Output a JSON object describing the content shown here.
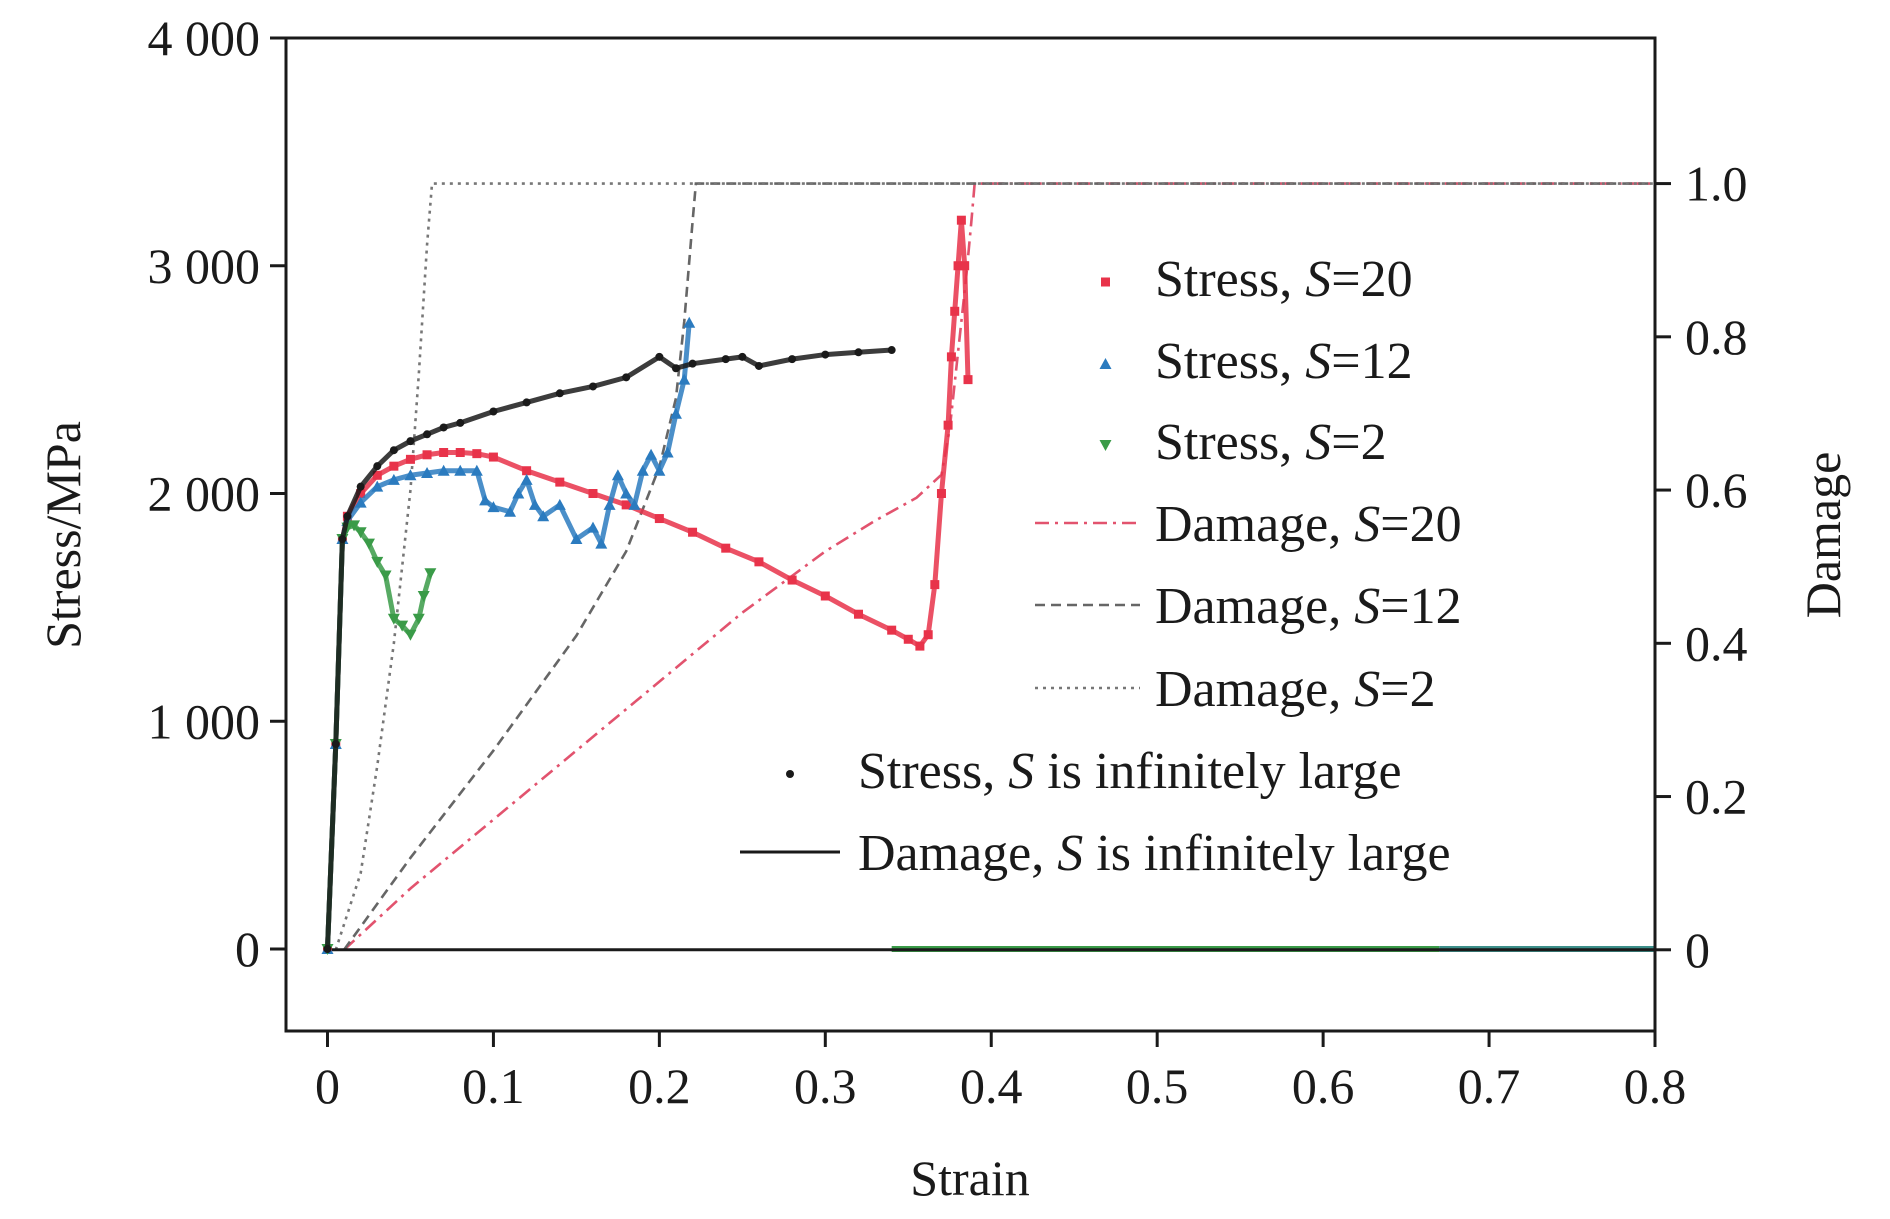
{
  "chart_data": {
    "type": "scatter",
    "xlabel": "Strain",
    "ylabel": "Stress/MPa",
    "y2label": "Damage",
    "xlim": [
      -0.025,
      0.8
    ],
    "ylim": [
      -360,
      4000
    ],
    "y2lim": [
      -0.106,
      1.19
    ],
    "x_ticks": [
      0,
      0.1,
      0.2,
      0.3,
      0.4,
      0.5,
      0.6,
      0.7,
      0.8
    ],
    "x_tick_labels": [
      "0",
      "0.1",
      "0.2",
      "0.3",
      "0.4",
      "0.5",
      "0.6",
      "0.7",
      "0.8"
    ],
    "y_ticks": [
      0,
      1000,
      2000,
      3000,
      4000
    ],
    "y_tick_labels": [
      "0",
      "1 000",
      "2 000",
      "3 000",
      "4 000"
    ],
    "y2_ticks": [
      0,
      0.2,
      0.4,
      0.6,
      0.8,
      1.0
    ],
    "y2_tick_labels": [
      "0",
      "0.2",
      "0.4",
      "0.6",
      "0.8",
      "1.0"
    ],
    "legend_position": "right",
    "series": [
      {
        "name_parts": [
          "Stress, ",
          "S",
          "=20"
        ],
        "axis": "left",
        "style": "dots",
        "marker": "square",
        "color": "#e8334a",
        "x": [
          0,
          0.005,
          0.009,
          0.012,
          0.02,
          0.03,
          0.04,
          0.05,
          0.06,
          0.07,
          0.08,
          0.09,
          0.1,
          0.12,
          0.14,
          0.16,
          0.18,
          0.2,
          0.22,
          0.24,
          0.26,
          0.28,
          0.3,
          0.32,
          0.34,
          0.35,
          0.357,
          0.362,
          0.366,
          0.37,
          0.374,
          0.376,
          0.378,
          0.38,
          0.382,
          0.384,
          0.386
        ],
        "y": [
          0,
          900,
          1800,
          1900,
          2000,
          2080,
          2120,
          2150,
          2170,
          2180,
          2180,
          2175,
          2160,
          2100,
          2050,
          2000,
          1950,
          1890,
          1830,
          1760,
          1700,
          1620,
          1550,
          1470,
          1400,
          1360,
          1330,
          1380,
          1600,
          2000,
          2300,
          2600,
          2800,
          3000,
          3200,
          3000,
          2500
        ]
      },
      {
        "name_parts": [
          "Stress, ",
          "S",
          "=12"
        ],
        "axis": "left",
        "style": "dots",
        "marker": "triangle",
        "color": "#2b7bbf",
        "x": [
          0,
          0.005,
          0.009,
          0.012,
          0.02,
          0.03,
          0.04,
          0.05,
          0.06,
          0.07,
          0.08,
          0.09,
          0.095,
          0.1,
          0.11,
          0.115,
          0.12,
          0.125,
          0.13,
          0.14,
          0.15,
          0.16,
          0.165,
          0.17,
          0.175,
          0.18,
          0.185,
          0.19,
          0.195,
          0.2,
          0.205,
          0.21,
          0.215,
          0.218
        ],
        "y": [
          0,
          900,
          1800,
          1880,
          1960,
          2030,
          2060,
          2080,
          2090,
          2100,
          2100,
          2100,
          1970,
          1940,
          1920,
          2000,
          2060,
          1950,
          1900,
          1950,
          1800,
          1850,
          1780,
          1950,
          2080,
          2000,
          1950,
          2100,
          2170,
          2100,
          2180,
          2350,
          2500,
          2750
        ]
      },
      {
        "name_parts": [
          "Stress, ",
          "S",
          "=2"
        ],
        "axis": "left",
        "style": "dots",
        "marker": "down-triangle",
        "color": "#3a9b48",
        "x": [
          0,
          0.005,
          0.009,
          0.012,
          0.016,
          0.02,
          0.025,
          0.03,
          0.035,
          0.04,
          0.045,
          0.05,
          0.055,
          0.058,
          0.062
        ],
        "y": [
          0,
          900,
          1800,
          1850,
          1860,
          1830,
          1780,
          1700,
          1640,
          1450,
          1420,
          1380,
          1450,
          1550,
          1650
        ]
      },
      {
        "name_parts": [
          "Damage, ",
          "S",
          "=20"
        ],
        "axis": "right",
        "style": "dash-dot",
        "color": "#e2536e",
        "x": [
          0.01,
          0.05,
          0.1,
          0.15,
          0.2,
          0.25,
          0.3,
          0.33,
          0.355,
          0.37,
          0.375,
          0.38,
          0.385,
          0.388,
          0.39,
          0.8
        ],
        "y": [
          0,
          0.08,
          0.17,
          0.26,
          0.35,
          0.44,
          0.52,
          0.56,
          0.59,
          0.62,
          0.68,
          0.78,
          0.88,
          0.95,
          1.0,
          1.0
        ]
      },
      {
        "name_parts": [
          "Damage, ",
          "S",
          "=12"
        ],
        "axis": "right",
        "style": "dashed",
        "color": "#666666",
        "x": [
          0.01,
          0.05,
          0.1,
          0.15,
          0.18,
          0.2,
          0.21,
          0.215,
          0.22,
          0.222,
          0.8
        ],
        "y": [
          0,
          0.12,
          0.26,
          0.41,
          0.52,
          0.63,
          0.72,
          0.82,
          0.95,
          1.0,
          1.0
        ]
      },
      {
        "name_parts": [
          "Damage, ",
          "S",
          "=2"
        ],
        "axis": "right",
        "style": "dotted",
        "color": "#777777",
        "x": [
          0.005,
          0.02,
          0.03,
          0.04,
          0.05,
          0.055,
          0.06,
          0.063,
          0.8
        ],
        "y": [
          0,
          0.1,
          0.24,
          0.4,
          0.6,
          0.75,
          0.92,
          1.0,
          1.0
        ]
      },
      {
        "name_parts": [
          "Stress, ",
          "S",
          " is infinitely large"
        ],
        "axis": "left",
        "style": "dots",
        "marker": "dot",
        "color": "#1a1a1a",
        "x": [
          0,
          0.005,
          0.009,
          0.012,
          0.02,
          0.03,
          0.04,
          0.05,
          0.06,
          0.07,
          0.08,
          0.1,
          0.12,
          0.14,
          0.16,
          0.18,
          0.2,
          0.21,
          0.22,
          0.24,
          0.25,
          0.26,
          0.28,
          0.3,
          0.32,
          0.34
        ],
        "y": [
          0,
          900,
          1800,
          1900,
          2030,
          2120,
          2190,
          2230,
          2260,
          2290,
          2310,
          2360,
          2400,
          2440,
          2470,
          2510,
          2600,
          2550,
          2570,
          2590,
          2600,
          2560,
          2590,
          2610,
          2620,
          2630
        ]
      },
      {
        "name_parts": [
          "Damage, ",
          "S",
          " is infinitely large"
        ],
        "axis": "right",
        "style": "solid",
        "color": "#1a1a1a",
        "x": [
          0,
          0.8
        ],
        "y": [
          0,
          0
        ]
      }
    ],
    "zero_strip": [
      {
        "x": [
          0.34,
          0.67
        ],
        "y": [
          0,
          0
        ],
        "axis": "left",
        "color": "#3a9b48"
      },
      {
        "x": [
          0.67,
          0.8
        ],
        "y": [
          0,
          0
        ],
        "axis": "left",
        "color": "#3d8f8a"
      }
    ]
  }
}
